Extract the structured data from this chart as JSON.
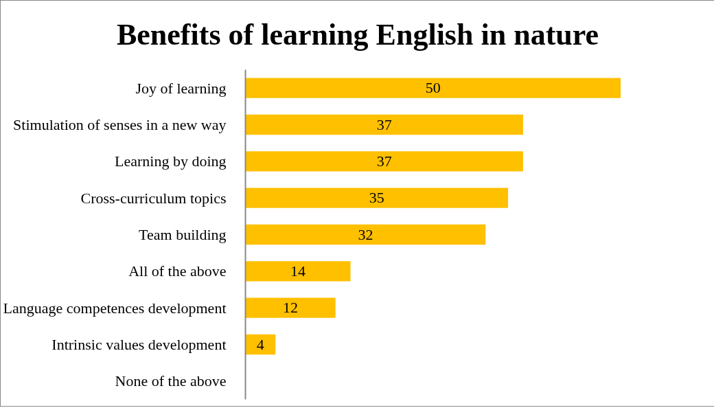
{
  "chart_data": {
    "type": "bar",
    "orientation": "horizontal",
    "title": "Benefits of learning English in nature",
    "categories": [
      "Joy of learning",
      "Stimulation of senses in a new way",
      "Learning by doing",
      "Cross-curriculum topics",
      "Team building",
      "All of the above",
      "Language competences development",
      "Intrinsic values development",
      "None of the above"
    ],
    "values": [
      50,
      37,
      37,
      35,
      32,
      14,
      12,
      4,
      0
    ],
    "value_labels": [
      "50",
      "37",
      "37",
      "35",
      "32",
      "14",
      "12",
      "4",
      null
    ],
    "color": "#ffc000",
    "grid": false
  }
}
